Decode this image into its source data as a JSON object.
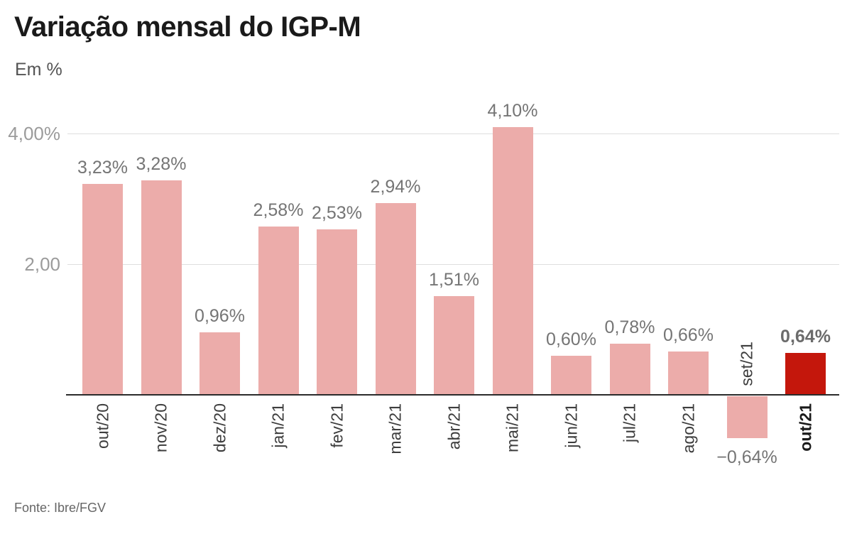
{
  "chart_data": {
    "type": "bar",
    "title": "Variação mensal do IGP-M",
    "unit_label": "Em %",
    "source": "Fonte: Ibre/FGV",
    "categories": [
      "out/20",
      "nov/20",
      "dez/20",
      "jan/21",
      "fev/21",
      "mar/21",
      "abr/21",
      "mai/21",
      "jun/21",
      "jul/21",
      "ago/21",
      "set/21",
      "out/21"
    ],
    "values": [
      3.23,
      3.28,
      0.96,
      2.58,
      2.53,
      2.94,
      1.51,
      4.1,
      0.6,
      0.78,
      0.66,
      -0.64,
      0.64
    ],
    "value_labels": [
      "3,23%",
      "3,28%",
      "0,96%",
      "2,58%",
      "2,53%",
      "2,94%",
      "1,51%",
      "4,10%",
      "0,60%",
      "0,78%",
      "0,66%",
      "−0,64%",
      "0,64%"
    ],
    "highlight_index": 12,
    "yticks": [
      {
        "value": 4.0,
        "label": "4,00%"
      },
      {
        "value": 2.0,
        "label": "2,00"
      }
    ],
    "ylim": [
      -0.8,
      4.4
    ],
    "grid": "horizontal-only",
    "legend": "none",
    "xlabel": "",
    "ylabel": "Em %",
    "colors": {
      "bar": "#ecacaa",
      "highlight_bar": "#c4170c",
      "axis": "#2b2b2b",
      "gridline": "#dedede"
    }
  }
}
